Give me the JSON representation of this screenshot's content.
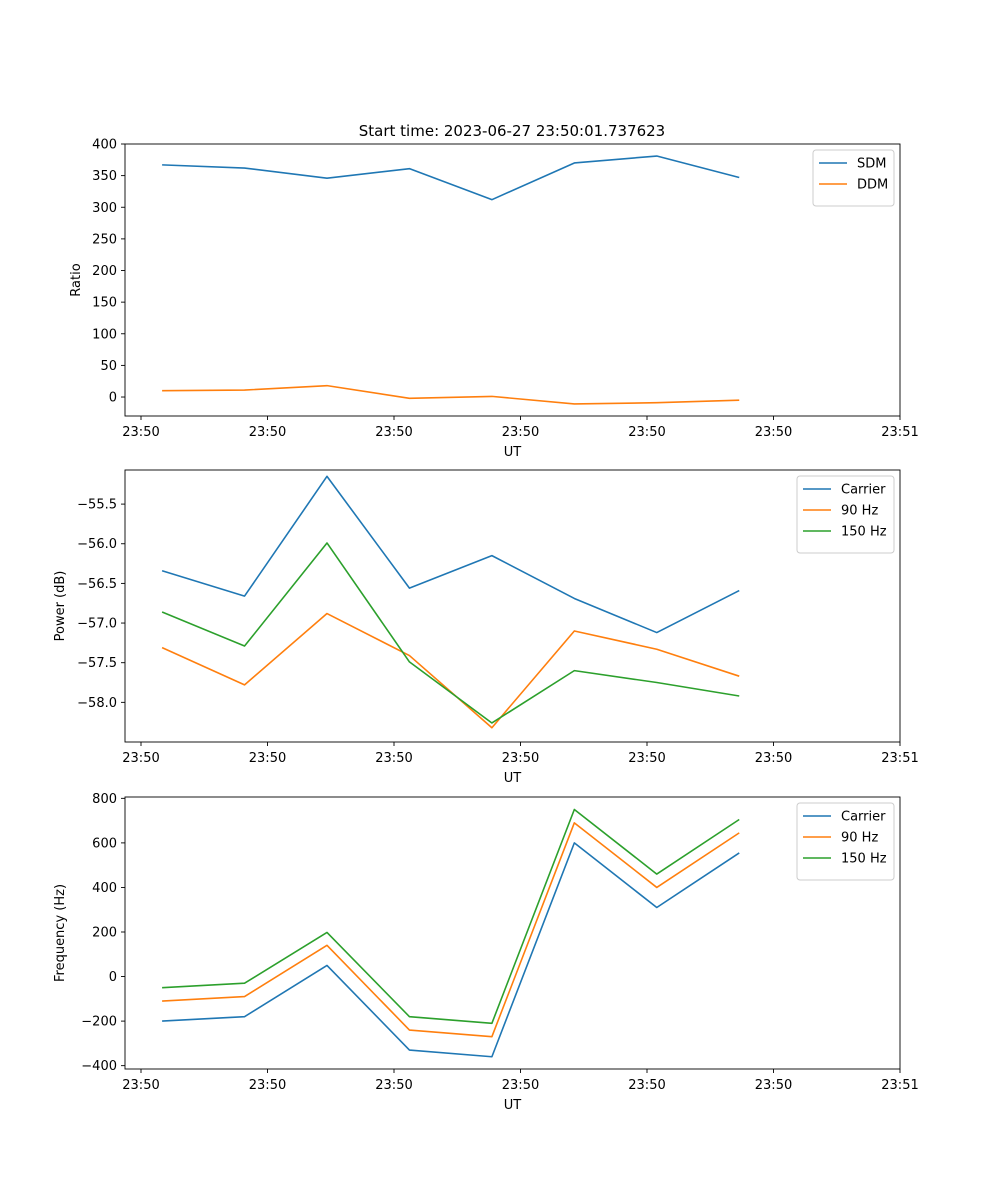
{
  "figure": {
    "title": "Start time: 2023-06-27 23:50:01.737623"
  },
  "chart_data": [
    {
      "type": "line",
      "xlabel": "UT",
      "ylabel": "Ratio",
      "x_tick_labels": [
        "23:50",
        "23:50",
        "23:50",
        "23:50",
        "23:50",
        "23:50",
        "23:51"
      ],
      "x": [
        1,
        2,
        3,
        4,
        5,
        6,
        7,
        8
      ],
      "xlim": [
        0.55,
        9.95
      ],
      "ylim": [
        -30,
        400
      ],
      "yticks": [
        0,
        50,
        100,
        150,
        200,
        250,
        300,
        350,
        400
      ],
      "legend_position": "upper right",
      "grid": false,
      "series": [
        {
          "name": "SDM",
          "color": "#1f77b4",
          "values": [
            367,
            362,
            346,
            361,
            312,
            370,
            381,
            347
          ]
        },
        {
          "name": "DDM",
          "color": "#ff7f0e",
          "values": [
            10,
            11,
            18,
            -2,
            1,
            -11,
            -9,
            -5
          ]
        }
      ]
    },
    {
      "type": "line",
      "xlabel": "UT",
      "ylabel": "Power (dB)",
      "x_tick_labels": [
        "23:50",
        "23:50",
        "23:50",
        "23:50",
        "23:50",
        "23:50",
        "23:51"
      ],
      "x": [
        1,
        2,
        3,
        4,
        5,
        6,
        7,
        8
      ],
      "xlim": [
        0.55,
        9.95
      ],
      "ylim": [
        -58.5,
        -55.07
      ],
      "yticks": [
        -58.0,
        -57.5,
        -57.0,
        -56.5,
        -56.0,
        -55.5
      ],
      "ytick_labels": [
        "−58.0",
        "−57.5",
        "−57.0",
        "−56.5",
        "−56.0",
        "−55.5"
      ],
      "legend_position": "upper right",
      "grid": false,
      "series": [
        {
          "name": "Carrier",
          "color": "#1f77b4",
          "values": [
            -56.34,
            -56.66,
            -55.15,
            -56.56,
            -56.15,
            -56.69,
            -57.12,
            -56.59
          ]
        },
        {
          "name": "90 Hz",
          "color": "#ff7f0e",
          "values": [
            -57.31,
            -57.78,
            -56.88,
            -57.41,
            -58.32,
            -57.1,
            -57.33,
            -57.67
          ]
        },
        {
          "name": "150 Hz",
          "color": "#2ca02c",
          "values": [
            -56.86,
            -57.29,
            -55.99,
            -57.49,
            -58.26,
            -57.6,
            -57.75,
            -57.92
          ]
        }
      ]
    },
    {
      "type": "line",
      "xlabel": "UT",
      "ylabel": "Frequency (Hz)",
      "x_tick_labels": [
        "23:50",
        "23:50",
        "23:50",
        "23:50",
        "23:50",
        "23:50",
        "23:51"
      ],
      "x": [
        1,
        2,
        3,
        4,
        5,
        6,
        7,
        8
      ],
      "xlim": [
        0.55,
        9.95
      ],
      "ylim": [
        -415,
        806
      ],
      "yticks": [
        -400,
        -200,
        0,
        200,
        400,
        600,
        800
      ],
      "ytick_labels": [
        "−400",
        "−200",
        "0",
        "200",
        "400",
        "600",
        "800"
      ],
      "legend_position": "upper right",
      "grid": false,
      "series": [
        {
          "name": "Carrier",
          "color": "#1f77b4",
          "values": [
            -200,
            -180,
            50,
            -330,
            -360,
            600,
            310,
            555
          ]
        },
        {
          "name": "90 Hz",
          "color": "#ff7f0e",
          "values": [
            -110,
            -90,
            140,
            -240,
            -270,
            690,
            400,
            645
          ]
        },
        {
          "name": "150 Hz",
          "color": "#2ca02c",
          "values": [
            -50,
            -30,
            198,
            -180,
            -210,
            750,
            460,
            705
          ]
        }
      ]
    }
  ]
}
